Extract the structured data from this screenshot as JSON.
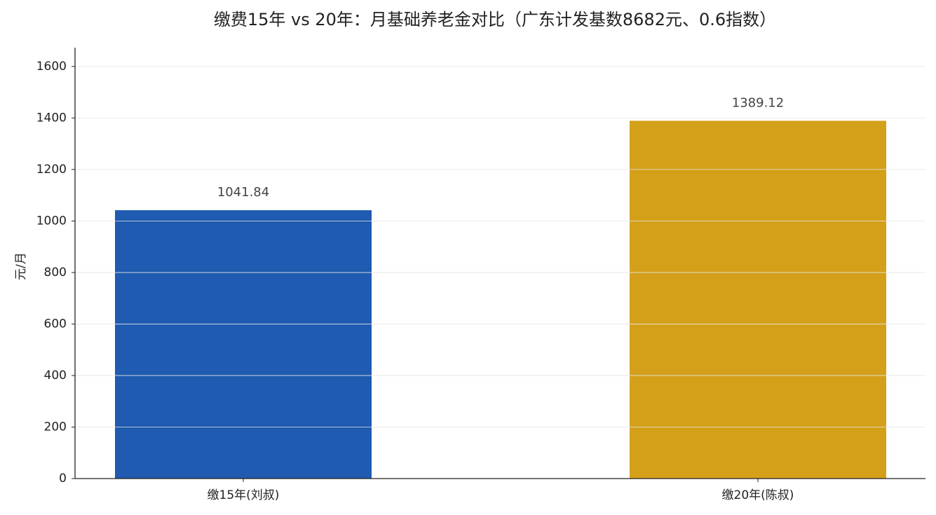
{
  "chart_data": {
    "type": "bar",
    "title": "缴费15年 vs 20年：月基础养老金对比（广东计发基数8682元、0.6指数）",
    "ylabel": "元/月",
    "categories": [
      "缴15年(刘叔)",
      "缴20年(陈叔)"
    ],
    "values": [
      1041.84,
      1389.12
    ],
    "colors": [
      "#1f5bb0",
      "#d4a01a"
    ],
    "ylim": [
      0,
      1673
    ],
    "yticks": [
      0,
      200,
      400,
      600,
      800,
      1000,
      1200,
      1400,
      1600
    ],
    "grid": true
  }
}
